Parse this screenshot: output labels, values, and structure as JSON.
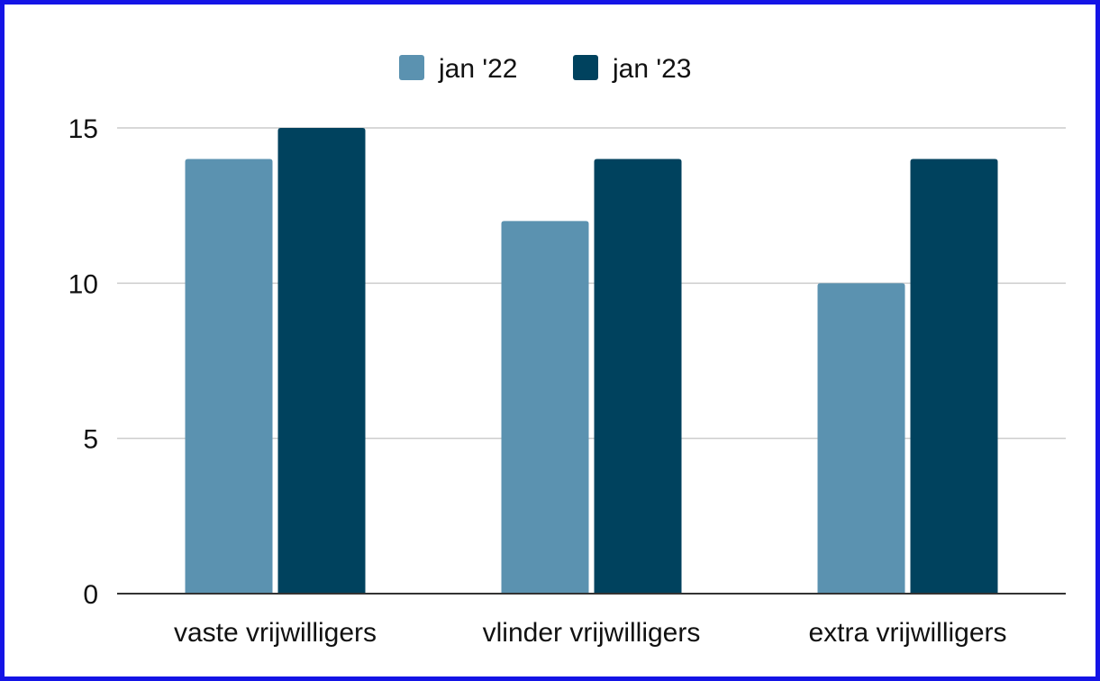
{
  "chart_data": {
    "type": "bar",
    "title": "",
    "xlabel": "",
    "ylabel": "",
    "categories": [
      "vaste vrijwilligers",
      "vlinder vrijwilligers",
      "extra vrijwilligers"
    ],
    "series": [
      {
        "name": "jan '22",
        "values": [
          14,
          12,
          10
        ],
        "color": "#5b92b0"
      },
      {
        "name": "jan '23",
        "values": [
          15,
          14,
          14
        ],
        "color": "#00425e"
      }
    ],
    "ylim": [
      0,
      15
    ],
    "yticks": [
      0,
      5,
      10,
      15
    ],
    "grid": true,
    "legend_position": "top-center",
    "frame_color": "#1414e6"
  }
}
